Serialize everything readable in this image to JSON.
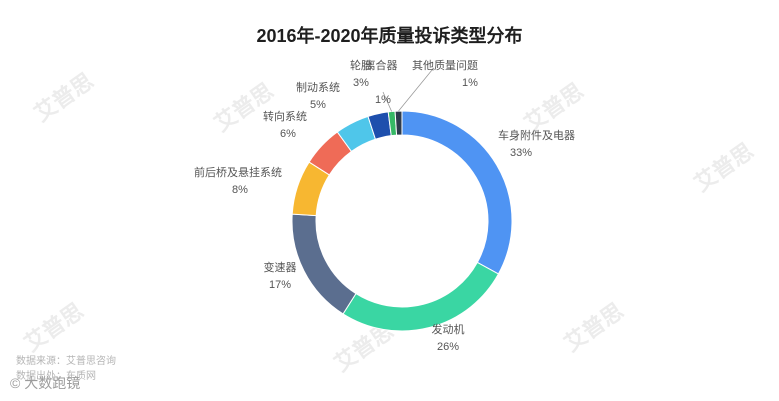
{
  "chart_data": {
    "type": "pie",
    "title": "2016年-2020年质量投诉类型分布",
    "donut": true,
    "categories": [
      "车身附件及电器",
      "发动机",
      "变速器",
      "前后桥及悬挂系统",
      "转向系统",
      "制动系统",
      "轮胎",
      "离合器",
      "其他质量问题"
    ],
    "values": [
      33,
      26,
      17,
      8,
      6,
      5,
      3,
      1,
      1
    ],
    "value_labels": [
      "33%",
      "26%",
      "17%",
      "8%",
      "6%",
      "5%",
      "3%",
      "1%",
      "1%"
    ],
    "colors": [
      "#4f94f3",
      "#3ad6a3",
      "#5b6e8f",
      "#f7b731",
      "#ef6b57",
      "#4fc6ea",
      "#1e4fad",
      "#36b865",
      "#2e3b4c"
    ]
  },
  "watermark": "艾普思",
  "source_lines": [
    "数据来源：艾普思咨询",
    "数据出处：车质网"
  ],
  "brand_text": "© 大数跑镜"
}
